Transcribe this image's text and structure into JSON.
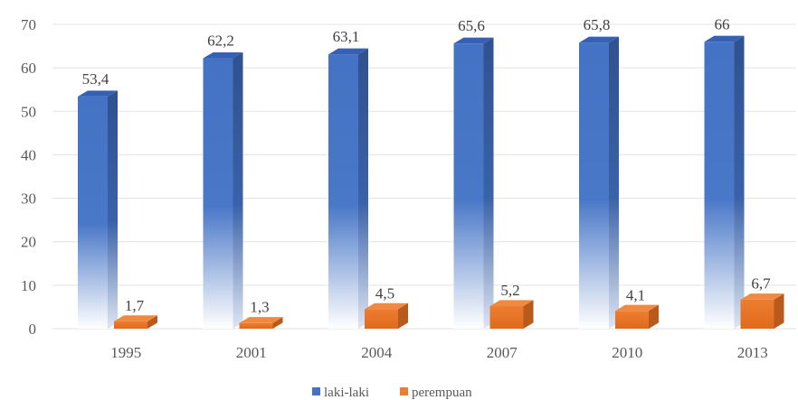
{
  "chart_data": {
    "type": "bar",
    "categories": [
      "1995",
      "2001",
      "2004",
      "2007",
      "2010",
      "2013"
    ],
    "series": [
      {
        "name": "laki-laki",
        "values": [
          53.4,
          62.2,
          63.1,
          65.6,
          65.8,
          66
        ],
        "labels": [
          "53,4",
          "62,2",
          "63,1",
          "65,6",
          "65,8",
          "66"
        ]
      },
      {
        "name": "perempuan",
        "values": [
          1.7,
          1.3,
          4.5,
          5.2,
          4.1,
          6.7
        ],
        "labels": [
          "1,7",
          "1,3",
          "4,5",
          "5,2",
          "4,1",
          "6,7"
        ]
      }
    ],
    "title": "",
    "xlabel": "",
    "ylabel": "",
    "ylim": [
      0,
      70
    ],
    "yticks": [
      "0",
      "10",
      "20",
      "30",
      "40",
      "50",
      "60",
      "70"
    ],
    "grid": true,
    "legend_position": "bottom",
    "style": "3d-column"
  },
  "colors": {
    "series_1": "#4472c4",
    "series_1_dark": "#2f528f",
    "series_1_top": "#3660b4",
    "series_2": "#ed7d31",
    "series_2_dark": "#b85a1b",
    "series_2_top": "#f08a40",
    "grid": "#e3e3e3"
  }
}
